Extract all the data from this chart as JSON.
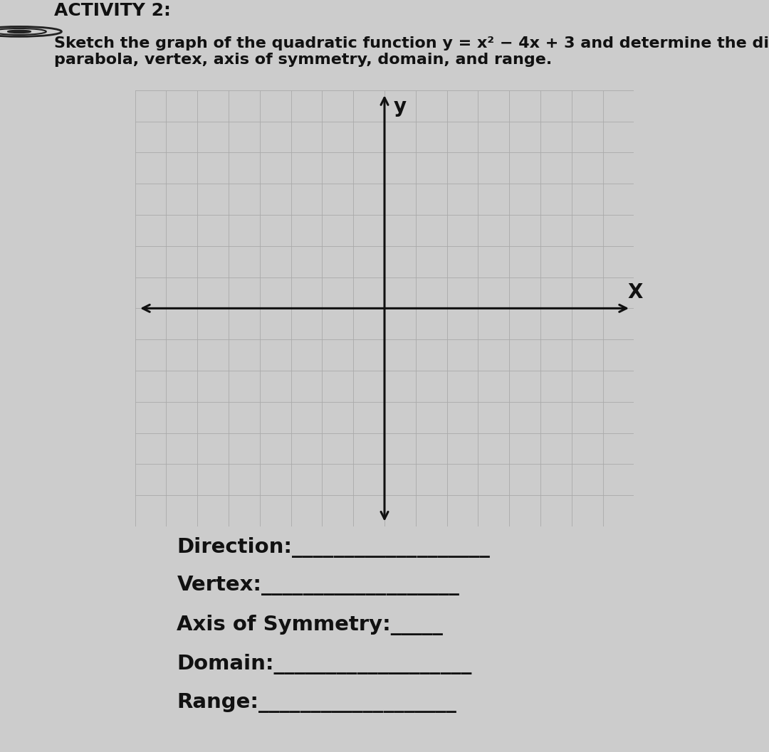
{
  "title_activity": "ACTIVITY 2:",
  "title_desc": "Sketch the graph of the quadratic function y = x² − 4x + 3 and determine the direction of the\nparabola, vertex, axis of symmetry, domain, and range.",
  "bg_color": "#cccccc",
  "paper_color": "#d9d9d9",
  "grid_color": "#aaaaaa",
  "axis_color": "#111111",
  "x_label": "X",
  "y_label": "y",
  "xlim": [
    -8,
    8
  ],
  "ylim": [
    -7,
    7
  ],
  "label_lines": [
    "Direction:___________________",
    "Vertex:___________________",
    "Axis of Symmetry:_____",
    "Domain:___________________",
    "Range:___________________"
  ],
  "label_fontsize": 21,
  "axis_label_fontsize": 20,
  "title_fontsize": 18,
  "subtitle_fontsize": 16
}
